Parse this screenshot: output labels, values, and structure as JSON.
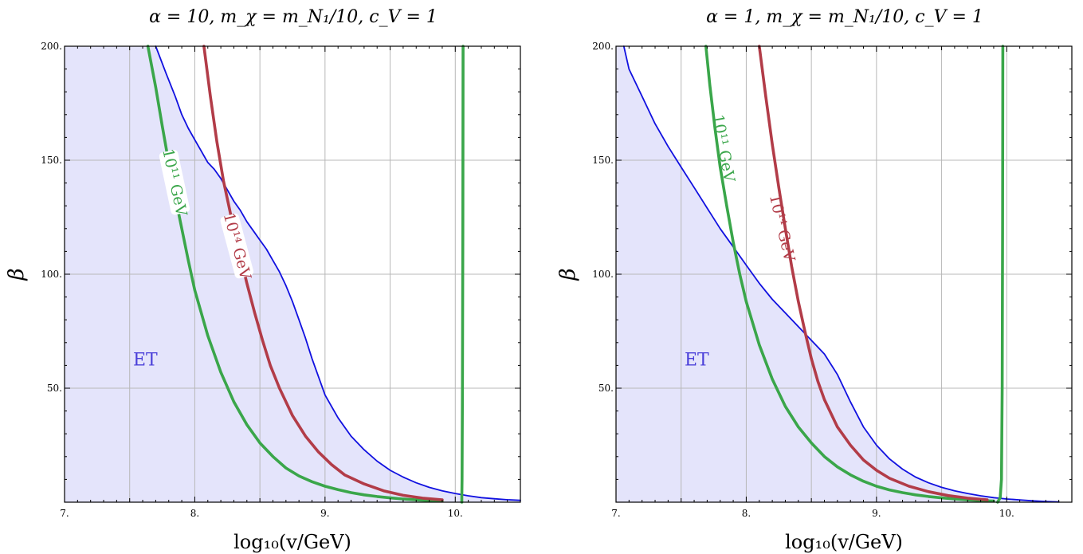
{
  "chart_data": [
    {
      "type": "line",
      "title": "α = 10, m_χ = m_N₁/10, c_V = 1",
      "xlabel": "log₁₀(v/GeV)",
      "ylabel": "β",
      "xlim": [
        7,
        10.5
      ],
      "ylim": [
        0,
        200
      ],
      "xticks": [
        "7.",
        "8.",
        "9.",
        "10."
      ],
      "yticks": [
        "50.",
        "100.",
        "150.",
        "200."
      ],
      "xtick_values": [
        7,
        8,
        9,
        10
      ],
      "ytick_values": [
        50,
        100,
        150,
        200
      ],
      "grid": true,
      "region_label": "ET",
      "region_label_pos": [
        7.62,
        60
      ],
      "series": [
        {
          "name": "ET",
          "kind": "region",
          "color": "#1010e0",
          "fill": "#e4e4fb",
          "x": [
            7.7,
            7.78,
            7.85,
            7.9,
            7.95,
            8.0,
            8.05,
            8.1,
            8.15,
            8.2,
            8.25,
            8.3,
            8.35,
            8.4,
            8.45,
            8.5,
            8.55,
            8.6,
            8.65,
            8.7,
            8.75,
            8.8,
            8.85,
            8.9,
            8.95,
            9.0,
            9.1,
            9.2,
            9.3,
            9.4,
            9.5,
            9.6,
            9.7,
            9.8,
            9.9,
            10.0,
            10.1,
            10.2,
            10.3,
            10.4,
            10.5
          ],
          "y": [
            200,
            188,
            178,
            170,
            164,
            159,
            154,
            149,
            146,
            142,
            137,
            132,
            128,
            123,
            119,
            115,
            111,
            106,
            101,
            95,
            88,
            80,
            72,
            63,
            55,
            47,
            37,
            29,
            23,
            18,
            14,
            11,
            8.5,
            6.5,
            5,
            3.8,
            2.8,
            2,
            1.5,
            1.1,
            0.8
          ]
        },
        {
          "name": "10¹¹ GeV",
          "color": "#3aa64a",
          "x": [
            7.64,
            7.7,
            7.75,
            7.8,
            7.85,
            7.9,
            7.95,
            8.0,
            8.1,
            8.2,
            8.3,
            8.4,
            8.5,
            8.6,
            8.7,
            8.8,
            8.9,
            9.0,
            9.1,
            9.2,
            9.3,
            9.4,
            9.5,
            9.6,
            9.7,
            9.8,
            9.9
          ],
          "y": [
            200,
            182,
            165,
            149,
            134,
            120,
            106,
            93,
            73,
            57,
            44,
            34,
            26,
            20,
            15,
            11.5,
            9,
            7,
            5.5,
            4.2,
            3.2,
            2.5,
            1.9,
            1.4,
            1.0,
            0.7,
            0.5
          ]
        },
        {
          "name": "10¹⁴ GeV",
          "color": "#b23c48",
          "x": [
            8.07,
            8.12,
            8.17,
            8.22,
            8.28,
            8.34,
            8.4,
            8.46,
            8.52,
            8.58,
            8.65,
            8.75,
            8.85,
            8.95,
            9.05,
            9.15,
            9.3,
            9.45,
            9.6,
            9.75,
            9.9
          ],
          "y": [
            200,
            178,
            158,
            141,
            125,
            110,
            96,
            83,
            71,
            60,
            50,
            38,
            29,
            22,
            16.5,
            12,
            8,
            5,
            3,
            1.8,
            1.0
          ]
        },
        {
          "name": "vertical",
          "color": "#3aa64a",
          "x": [
            10.05,
            10.05,
            10.052,
            10.055,
            10.058,
            10.06
          ],
          "y": [
            0,
            2,
            10,
            50,
            120,
            200
          ]
        }
      ],
      "labels": [
        {
          "text": "10¹¹ GeV",
          "x": 7.82,
          "y": 140,
          "angle": 78,
          "color": "#3aa64a",
          "bg": true
        },
        {
          "text": "10¹⁴ GeV",
          "x": 8.3,
          "y": 112,
          "angle": 75,
          "color": "#b23c48",
          "bg": true
        }
      ]
    },
    {
      "type": "line",
      "title": "α = 1, m_χ = m_N₁/10, c_V = 1",
      "xlabel": "log₁₀(v/GeV)",
      "ylabel": "β",
      "xlim": [
        7,
        10.5
      ],
      "ylim": [
        0,
        200
      ],
      "xticks": [
        "7.",
        "8.",
        "9.",
        "10."
      ],
      "yticks": [
        "50.",
        "100.",
        "150.",
        "200."
      ],
      "xtick_values": [
        7,
        8,
        9,
        10
      ],
      "ytick_values": [
        50,
        100,
        150,
        200
      ],
      "grid": true,
      "region_label": "ET",
      "region_label_pos": [
        7.62,
        60
      ],
      "series": [
        {
          "name": "ET",
          "kind": "region",
          "color": "#1010e0",
          "fill": "#e4e4fb",
          "x": [
            7.06,
            7.1,
            7.2,
            7.3,
            7.4,
            7.5,
            7.6,
            7.7,
            7.8,
            7.9,
            8.0,
            8.1,
            8.2,
            8.3,
            8.4,
            8.5,
            8.6,
            8.7,
            8.8,
            8.9,
            9.0,
            9.1,
            9.2,
            9.3,
            9.4,
            9.5,
            9.6,
            9.7,
            9.8,
            9.9,
            10.0,
            10.1,
            10.2,
            10.3,
            10.4
          ],
          "y": [
            200,
            190,
            178,
            166,
            156,
            147,
            138,
            129,
            120,
            112,
            104,
            96,
            89,
            83,
            77,
            71,
            65,
            56,
            44,
            33,
            25,
            19,
            14.5,
            11,
            8.5,
            6.5,
            5,
            3.8,
            2.8,
            2,
            1.4,
            1,
            0.6,
            0.3,
            0.1
          ]
        },
        {
          "name": "10¹¹ GeV",
          "color": "#3aa64a",
          "x": [
            7.69,
            7.72,
            7.76,
            7.8,
            7.85,
            7.9,
            7.95,
            8.0,
            8.1,
            8.2,
            8.3,
            8.4,
            8.5,
            8.6,
            8.7,
            8.8,
            8.9,
            9.0,
            9.1,
            9.2,
            9.3,
            9.4,
            9.5,
            9.6,
            9.7,
            9.8,
            9.9
          ],
          "y": [
            200,
            183,
            164,
            147,
            130,
            114,
            100,
            88,
            69,
            54,
            42,
            33,
            26,
            20,
            15.5,
            12,
            9.2,
            7,
            5.4,
            4.2,
            3.2,
            2.5,
            1.9,
            1.4,
            1.0,
            0.7,
            0.5
          ]
        },
        {
          "name": "10¹⁴ GeV",
          "color": "#b23c48",
          "x": [
            8.1,
            8.15,
            8.2,
            8.25,
            8.3,
            8.35,
            8.4,
            8.45,
            8.5,
            8.55,
            8.6,
            8.7,
            8.8,
            8.9,
            9.0,
            9.1,
            9.25,
            9.4,
            9.55,
            9.7,
            9.85
          ],
          "y": [
            200,
            178,
            157,
            138,
            120,
            103,
            88,
            75,
            63,
            53,
            45,
            33,
            25,
            18.5,
            14,
            10.5,
            7,
            4.6,
            2.9,
            1.8,
            1.0
          ]
        },
        {
          "name": "vertical",
          "color": "#3aa64a",
          "x": [
            9.93,
            9.95,
            9.96,
            9.965,
            9.968,
            9.97
          ],
          "y": [
            0,
            2,
            10,
            50,
            120,
            200
          ]
        }
      ],
      "labels": [
        {
          "text": "10¹¹ GeV",
          "x": 7.8,
          "y": 155,
          "angle": 80,
          "color": "#3aa64a",
          "bg": false
        },
        {
          "text": "10¹⁴ GeV",
          "x": 8.25,
          "y": 120,
          "angle": 77,
          "color": "#b23c48",
          "bg": false
        }
      ]
    }
  ]
}
